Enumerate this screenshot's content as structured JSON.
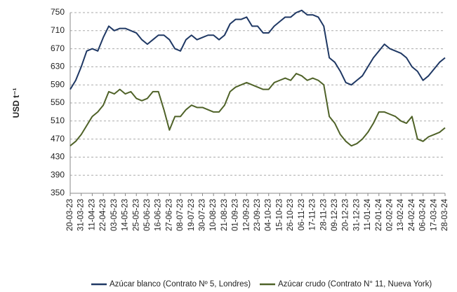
{
  "chart_data": {
    "type": "line",
    "y_label": "USD t⁻¹",
    "categories": [
      "20-03-23",
      null,
      "31-03-23",
      null,
      "11-04-23",
      null,
      "22-04-23",
      null,
      "03-05-23",
      null,
      "14-05-23",
      null,
      "25-05-23",
      null,
      "05-06-23",
      null,
      "16-06-23",
      null,
      "27-06-23",
      null,
      "08-07-23",
      null,
      "19-07-23",
      null,
      "30-07-23",
      null,
      "10-08-23",
      null,
      "21-08-23",
      null,
      "01-09-23",
      null,
      "12-09-23",
      null,
      "23-09-23",
      null,
      "04-10-23",
      null,
      "15-10-23",
      null,
      "26-10-23",
      null,
      "06-11-23",
      null,
      "17-11-23",
      null,
      "28-11-23",
      null,
      "09-12-23",
      null,
      "20-12-23",
      null,
      "31-12-23",
      null,
      "11-01-24",
      null,
      "22-01-24",
      null,
      "02-02-24",
      null,
      "13-02-24",
      null,
      "24-02-24",
      null,
      "06-03-24",
      null,
      "17-03-24",
      null,
      "28-03-24"
    ],
    "series": [
      {
        "name": "Azúcar blanco (Contrato Nº 5, Londres)",
        "color": "#1f3864",
        "values": [
          580,
          600,
          630,
          665,
          670,
          665,
          695,
          720,
          710,
          715,
          715,
          710,
          705,
          690,
          680,
          690,
          700,
          700,
          690,
          670,
          665,
          690,
          700,
          690,
          695,
          700,
          700,
          690,
          700,
          725,
          735,
          735,
          740,
          720,
          720,
          705,
          705,
          720,
          730,
          740,
          740,
          750,
          755,
          745,
          745,
          740,
          720,
          650,
          640,
          620,
          595,
          590,
          600,
          610,
          630,
          650,
          665,
          680,
          670,
          665,
          660,
          650,
          630,
          620,
          600,
          610,
          625,
          640,
          650
        ]
      },
      {
        "name": "Azúcar crudo (Contrato N° 11, Nueva York)",
        "color": "#4f6228",
        "values": [
          455,
          465,
          480,
          500,
          520,
          530,
          545,
          575,
          570,
          580,
          570,
          575,
          560,
          555,
          560,
          575,
          575,
          535,
          490,
          520,
          520,
          535,
          545,
          540,
          540,
          535,
          530,
          530,
          545,
          575,
          585,
          590,
          595,
          590,
          585,
          580,
          580,
          595,
          600,
          605,
          600,
          615,
          610,
          600,
          605,
          600,
          590,
          520,
          505,
          480,
          465,
          455,
          460,
          470,
          485,
          505,
          530,
          530,
          525,
          520,
          510,
          505,
          520,
          470,
          465,
          475,
          480,
          485,
          495
        ]
      }
    ],
    "ylim": [
      350,
      750
    ],
    "yticks": [
      350,
      390,
      430,
      470,
      510,
      550,
      590,
      630,
      670,
      710,
      750
    ],
    "grid": true
  }
}
